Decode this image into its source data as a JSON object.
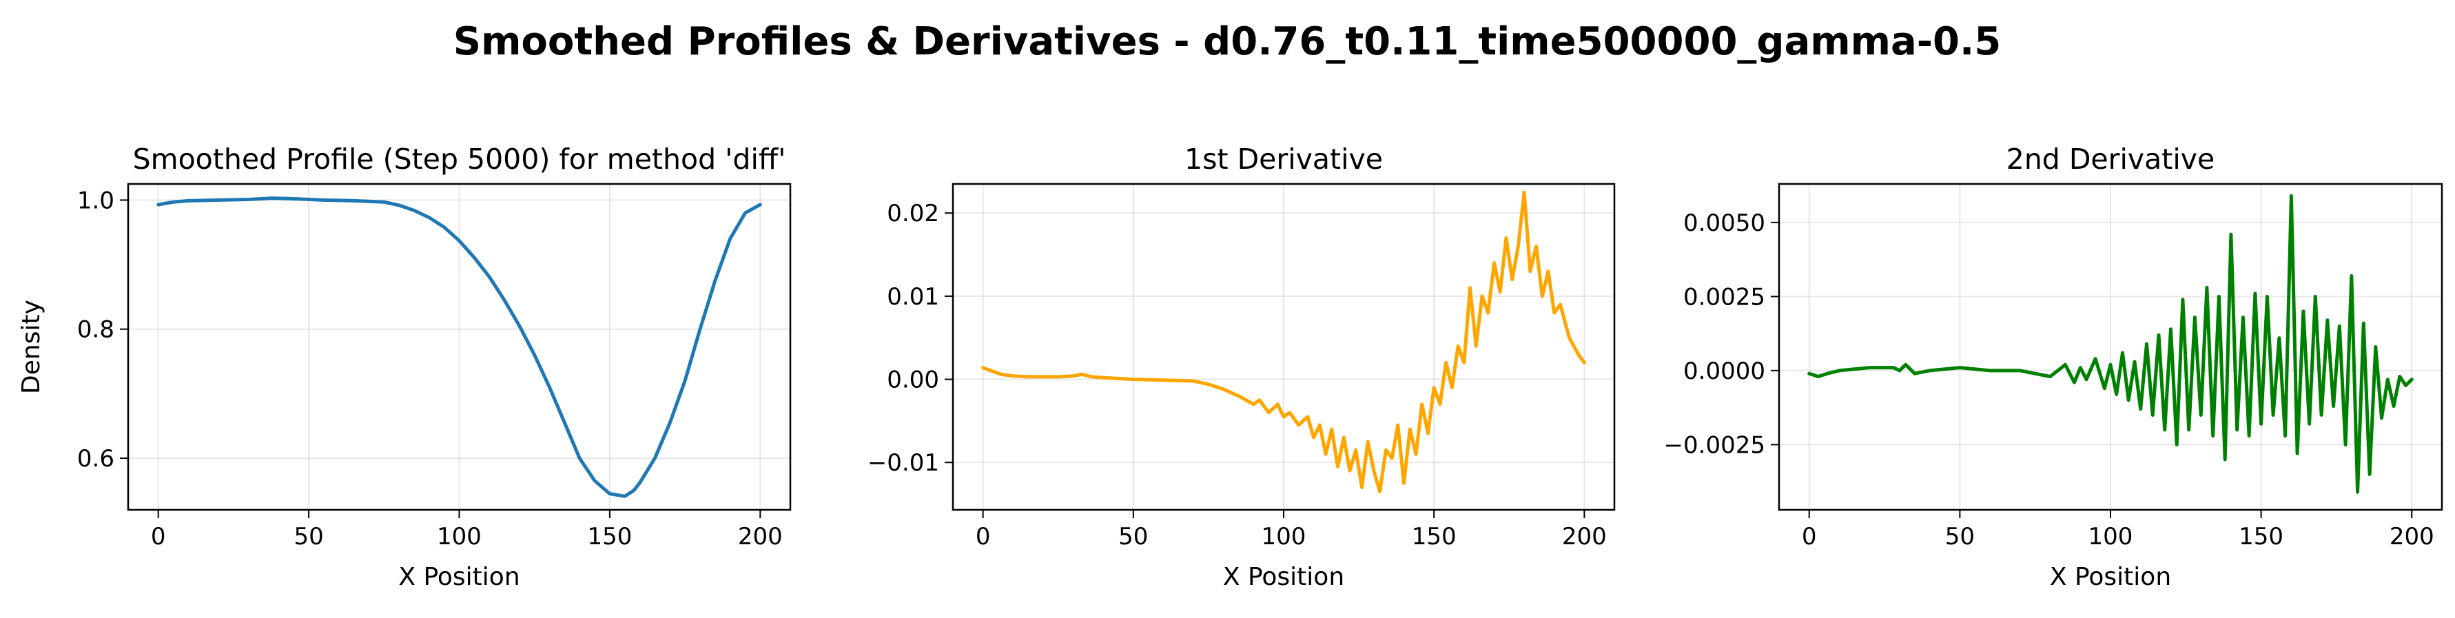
{
  "suptitle": "Smoothed Profiles & Derivatives - d0.76_t0.11_time500000_gamma-0.5",
  "chart_data": [
    {
      "type": "line",
      "title": "Smoothed Profile (Step 5000) for method 'diff'",
      "xlabel": "X Position",
      "ylabel": "Density",
      "xlim": [
        -10,
        210
      ],
      "ylim": [
        0.52,
        1.025
      ],
      "xticks": [
        0,
        50,
        100,
        150,
        200
      ],
      "yticks": [
        0.6,
        0.8,
        1.0
      ],
      "ytick_labels": [
        "0.6",
        "0.8",
        "1.0"
      ],
      "grid": true,
      "color": "#1f77b4",
      "x": [
        0,
        5,
        10,
        20,
        30,
        38,
        45,
        55,
        65,
        75,
        80,
        85,
        90,
        95,
        100,
        105,
        110,
        115,
        120,
        125,
        130,
        135,
        140,
        145,
        150,
        155,
        158,
        160,
        165,
        170,
        175,
        180,
        185,
        190,
        195,
        200
      ],
      "y": [
        0.993,
        0.997,
        0.999,
        1.0,
        1.001,
        1.003,
        1.002,
        1.0,
        0.999,
        0.997,
        0.992,
        0.984,
        0.973,
        0.958,
        0.937,
        0.911,
        0.881,
        0.845,
        0.805,
        0.76,
        0.71,
        0.655,
        0.6,
        0.565,
        0.545,
        0.541,
        0.55,
        0.562,
        0.6,
        0.655,
        0.72,
        0.8,
        0.875,
        0.94,
        0.98,
        0.993
      ]
    },
    {
      "type": "line",
      "title": "1st Derivative",
      "xlabel": "X Position",
      "ylabel": "",
      "xlim": [
        -10,
        210
      ],
      "ylim": [
        -0.0157,
        0.0235
      ],
      "xticks": [
        0,
        50,
        100,
        150,
        200
      ],
      "yticks": [
        -0.01,
        0.0,
        0.01,
        0.02
      ],
      "ytick_labels": [
        "−0.01",
        "0.00",
        "0.01",
        "0.02"
      ],
      "grid": true,
      "color": "#ffa500",
      "x": [
        0,
        3,
        6,
        10,
        15,
        20,
        25,
        30,
        33,
        36,
        40,
        50,
        60,
        70,
        75,
        80,
        85,
        90,
        92,
        95,
        98,
        100,
        102,
        105,
        108,
        110,
        112,
        114,
        116,
        118,
        120,
        122,
        124,
        126,
        128,
        130,
        132,
        134,
        136,
        138,
        140,
        142,
        144,
        146,
        148,
        150,
        152,
        154,
        156,
        158,
        160,
        162,
        164,
        166,
        168,
        170,
        172,
        174,
        176,
        178,
        180,
        182,
        184,
        186,
        188,
        190,
        192,
        195,
        198,
        200
      ],
      "y": [
        0.0014,
        0.001,
        0.0006,
        0.0004,
        0.0003,
        0.0003,
        0.0003,
        0.0004,
        0.0006,
        0.0003,
        0.0002,
        0.0,
        -0.0001,
        -0.0002,
        -0.0006,
        -0.0012,
        -0.002,
        -0.003,
        -0.0025,
        -0.004,
        -0.003,
        -0.0045,
        -0.004,
        -0.0055,
        -0.0045,
        -0.007,
        -0.0055,
        -0.009,
        -0.006,
        -0.0105,
        -0.007,
        -0.011,
        -0.0085,
        -0.013,
        -0.0075,
        -0.011,
        -0.0135,
        -0.0085,
        -0.0095,
        -0.0055,
        -0.0125,
        -0.006,
        -0.009,
        -0.003,
        -0.0065,
        -0.001,
        -0.003,
        0.002,
        -0.001,
        0.004,
        0.002,
        0.011,
        0.004,
        0.01,
        0.008,
        0.014,
        0.0105,
        0.017,
        0.012,
        0.016,
        0.0225,
        0.013,
        0.016,
        0.01,
        0.013,
        0.008,
        0.009,
        0.005,
        0.003,
        0.002
      ]
    },
    {
      "type": "line",
      "title": "2nd Derivative",
      "xlabel": "X Position",
      "ylabel": "",
      "xlim": [
        -10,
        210
      ],
      "ylim": [
        -0.0047,
        0.0063
      ],
      "xticks": [
        0,
        50,
        100,
        150,
        200
      ],
      "yticks": [
        -0.0025,
        0.0,
        0.0025,
        0.005
      ],
      "ytick_labels": [
        "−0.0025",
        "0.0000",
        "0.0025",
        "0.0050"
      ],
      "grid": true,
      "color": "#008000",
      "x": [
        0,
        3,
        6,
        10,
        20,
        28,
        30,
        32,
        35,
        40,
        50,
        60,
        70,
        80,
        85,
        88,
        90,
        92,
        95,
        98,
        100,
        102,
        104,
        106,
        108,
        110,
        112,
        114,
        116,
        118,
        120,
        122,
        124,
        126,
        128,
        130,
        132,
        134,
        136,
        138,
        140,
        142,
        144,
        146,
        148,
        150,
        152,
        154,
        156,
        158,
        160,
        162,
        164,
        166,
        168,
        170,
        172,
        174,
        176,
        178,
        180,
        182,
        184,
        186,
        188,
        190,
        192,
        194,
        196,
        198,
        200
      ],
      "y": [
        -0.0001,
        -0.0002,
        -0.0001,
        0.0,
        0.0001,
        0.0001,
        0.0,
        0.0002,
        -0.0001,
        0.0,
        0.0001,
        0.0,
        0.0,
        -0.0002,
        0.0002,
        -0.0004,
        0.0001,
        -0.0003,
        0.0004,
        -0.0006,
        0.0002,
        -0.0008,
        0.0006,
        -0.001,
        0.0003,
        -0.0013,
        0.0009,
        -0.0015,
        0.0012,
        -0.002,
        0.0014,
        -0.0025,
        0.0024,
        -0.002,
        0.0018,
        -0.0015,
        0.0028,
        -0.0022,
        0.0025,
        -0.003,
        0.0046,
        -0.002,
        0.0018,
        -0.0022,
        0.0026,
        -0.0018,
        0.0025,
        -0.0015,
        0.0011,
        -0.0022,
        0.0059,
        -0.0028,
        0.002,
        -0.0018,
        0.0025,
        -0.0015,
        0.0017,
        -0.0012,
        0.0015,
        -0.0025,
        0.0032,
        -0.0041,
        0.0016,
        -0.0035,
        0.0008,
        -0.0016,
        -0.0003,
        -0.0012,
        -0.0002,
        -0.0005,
        -0.0003
      ]
    }
  ]
}
